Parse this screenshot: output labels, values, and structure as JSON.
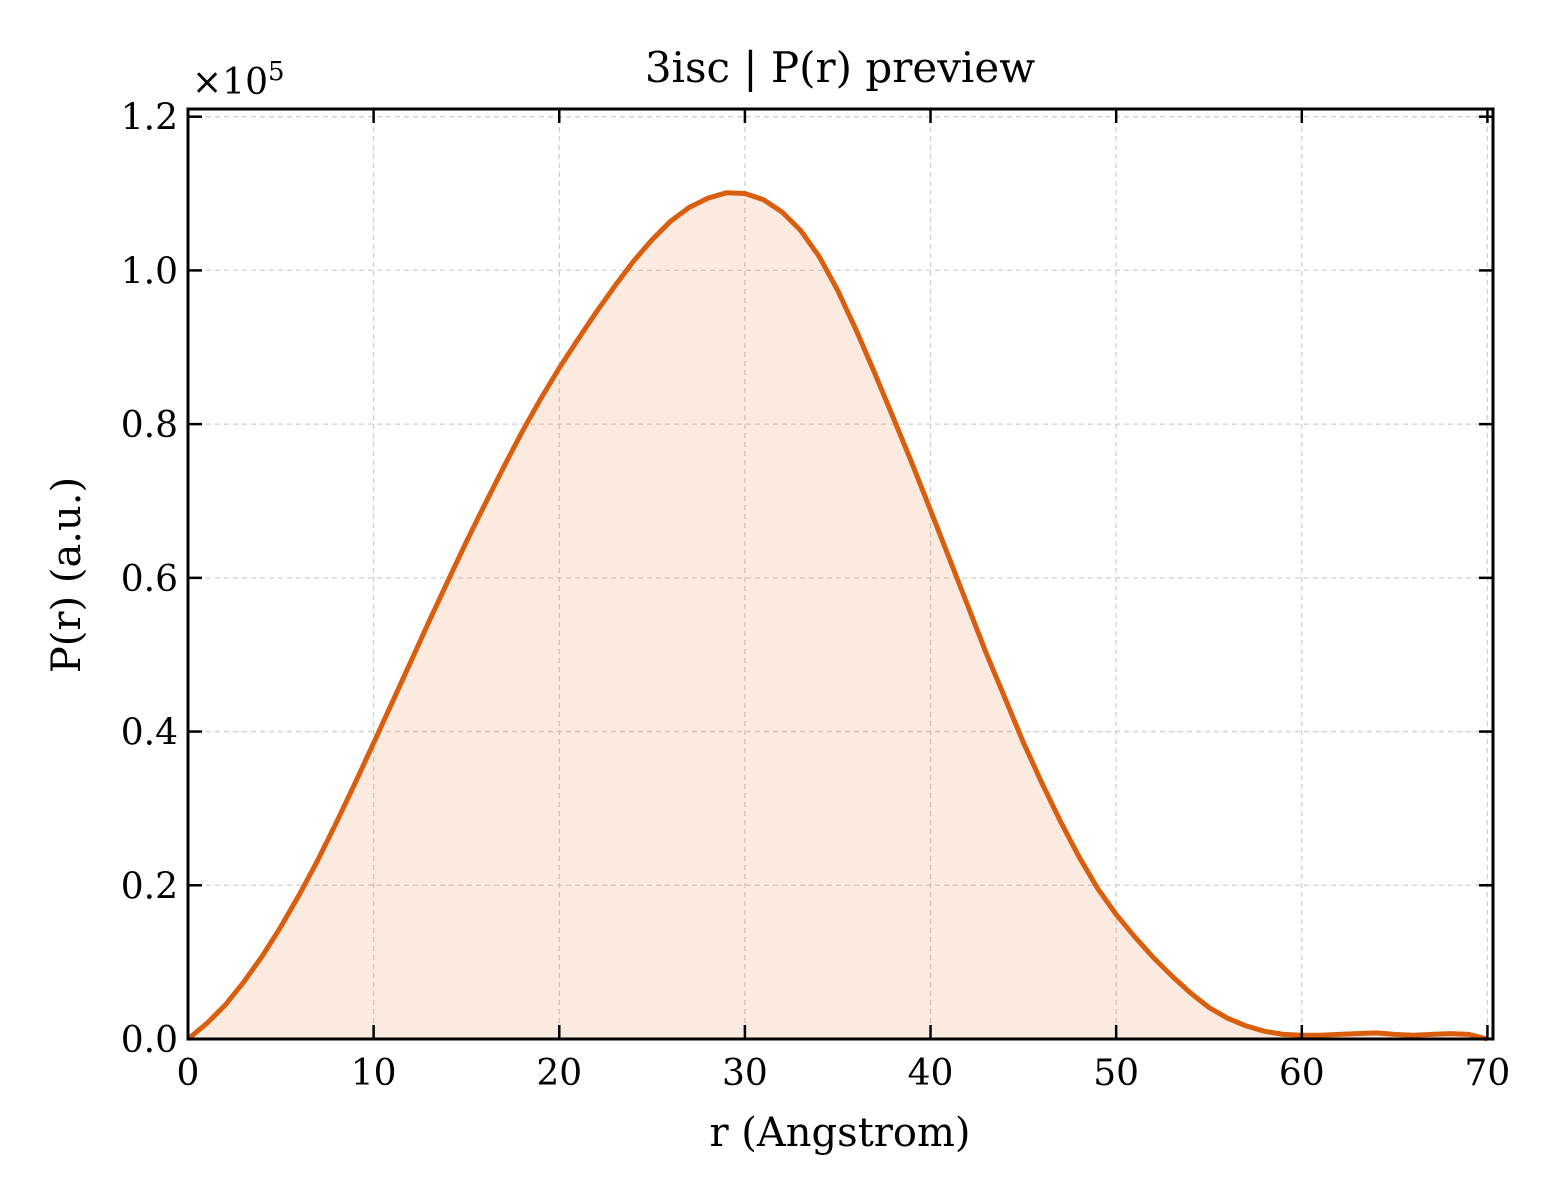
{
  "chart_data": {
    "type": "area",
    "title": "3isc | P(r) preview",
    "xlabel": "r (Angstrom)",
    "ylabel": "P(r) (a.u.)",
    "y_offset_label": "×10",
    "y_offset_exponent": "5",
    "xlim": [
      0,
      70.3
    ],
    "ylim": [
      0,
      1.21
    ],
    "y_scale_factor": 100000,
    "xticks": [
      0,
      10,
      20,
      30,
      40,
      50,
      60,
      70
    ],
    "xtick_labels": [
      "0",
      "10",
      "20",
      "30",
      "40",
      "50",
      "60",
      "70"
    ],
    "yticks": [
      0,
      0.2,
      0.4,
      0.6,
      0.8,
      1.0,
      1.2
    ],
    "ytick_labels": [
      "0.0",
      "0.2",
      "0.4",
      "0.6",
      "0.8",
      "1.0",
      "1.2"
    ],
    "grid": true,
    "series": [
      {
        "color": "#d95f0e",
        "fill_color": "#d95f0e",
        "fill_opacity": 0.13,
        "x": [
          0,
          1,
          2,
          3,
          4,
          5,
          6,
          7,
          8,
          9,
          10,
          11,
          12,
          13,
          14,
          15,
          16,
          17,
          18,
          19,
          20,
          21,
          22,
          23,
          24,
          25,
          26,
          27,
          28,
          29,
          30,
          31,
          32,
          33,
          34,
          35,
          36,
          37,
          38,
          39,
          40,
          41,
          42,
          43,
          44,
          45,
          46,
          47,
          48,
          49,
          50,
          51,
          52,
          53,
          54,
          55,
          56,
          57,
          58,
          59,
          60,
          61,
          62,
          63,
          64,
          65,
          66,
          67,
          68,
          69,
          70
        ],
        "y": [
          0.0,
          0.02,
          0.044,
          0.074,
          0.108,
          0.146,
          0.188,
          0.233,
          0.282,
          0.333,
          0.385,
          0.438,
          0.491,
          0.544,
          0.596,
          0.647,
          0.696,
          0.744,
          0.79,
          0.833,
          0.873,
          0.91,
          0.946,
          0.98,
          1.012,
          1.04,
          1.064,
          1.082,
          1.094,
          1.101,
          1.1,
          1.092,
          1.076,
          1.052,
          1.018,
          0.974,
          0.922,
          0.866,
          0.808,
          0.749,
          0.688,
          0.626,
          0.564,
          0.502,
          0.444,
          0.386,
          0.333,
          0.283,
          0.237,
          0.196,
          0.162,
          0.133,
          0.106,
          0.082,
          0.06,
          0.041,
          0.027,
          0.017,
          0.01,
          0.006,
          0.005,
          0.005,
          0.006,
          0.007,
          0.008,
          0.006,
          0.005,
          0.006,
          0.007,
          0.006,
          0.0
        ]
      }
    ]
  }
}
